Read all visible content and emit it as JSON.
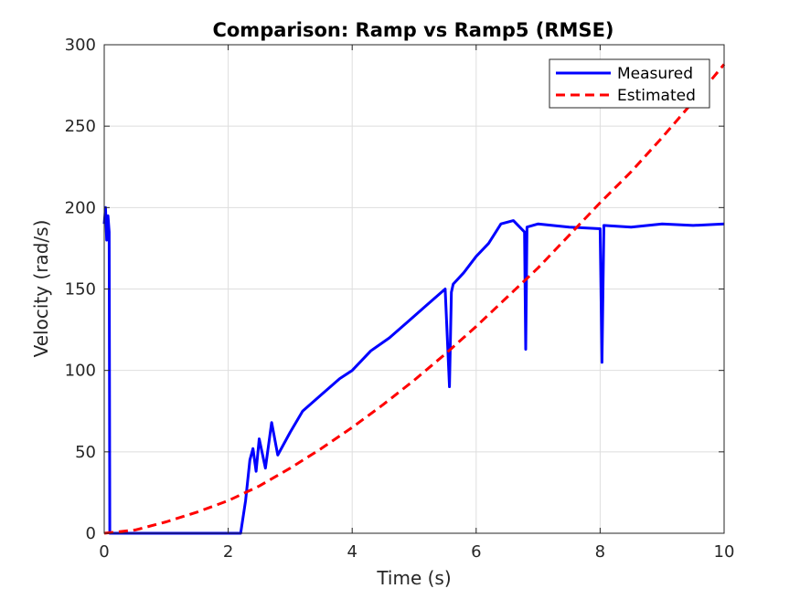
{
  "chart_data": {
    "type": "line",
    "title": "Comparison: Ramp vs Ramp5 (RMSE)",
    "xlabel": "Time (s)",
    "ylabel": "Velocity (rad/s)",
    "xlim": [
      0,
      10
    ],
    "ylim": [
      0,
      300
    ],
    "xticks": [
      0,
      2,
      4,
      6,
      8,
      10
    ],
    "yticks": [
      0,
      50,
      100,
      150,
      200,
      250,
      300
    ],
    "grid": true,
    "legend_position": "top-right",
    "series": [
      {
        "name": "Measured",
        "color": "#0000ff",
        "style": "solid",
        "x": [
          0.0,
          0.02,
          0.04,
          0.06,
          0.08,
          0.09,
          0.1,
          0.5,
          1.0,
          1.5,
          1.9,
          2.2,
          2.28,
          2.35,
          2.4,
          2.45,
          2.5,
          2.6,
          2.7,
          2.8,
          3.0,
          3.2,
          3.5,
          3.8,
          4.0,
          4.3,
          4.6,
          4.9,
          5.2,
          5.5,
          5.57,
          5.6,
          5.63,
          5.8,
          6.0,
          6.2,
          6.4,
          6.6,
          6.78,
          6.8,
          6.82,
          7.0,
          7.5,
          8.0,
          8.03,
          8.06,
          8.5,
          9.0,
          9.5,
          10.0
        ],
        "y": [
          190,
          200,
          180,
          195,
          185,
          0,
          0,
          0,
          0,
          0,
          0,
          0,
          20,
          45,
          52,
          38,
          58,
          40,
          68,
          48,
          62,
          75,
          85,
          95,
          100,
          112,
          120,
          130,
          140,
          150,
          90,
          148,
          153,
          160,
          170,
          178,
          190,
          192,
          185,
          113,
          188,
          190,
          188,
          187,
          105,
          189,
          188,
          190,
          189,
          190
        ]
      },
      {
        "name": "Estimated",
        "color": "#ff0000",
        "style": "dashed",
        "x": [
          0,
          0.5,
          1,
          1.5,
          2,
          2.5,
          3,
          3.5,
          4,
          4.5,
          5,
          5.5,
          6,
          6.5,
          7,
          7.5,
          8,
          8.5,
          9,
          9.5,
          10
        ],
        "y": [
          0,
          2,
          7,
          13,
          20,
          29,
          40,
          52,
          65,
          79,
          94,
          110,
          127,
          145,
          163,
          183,
          203,
          222,
          243,
          265,
          288
        ]
      }
    ]
  }
}
